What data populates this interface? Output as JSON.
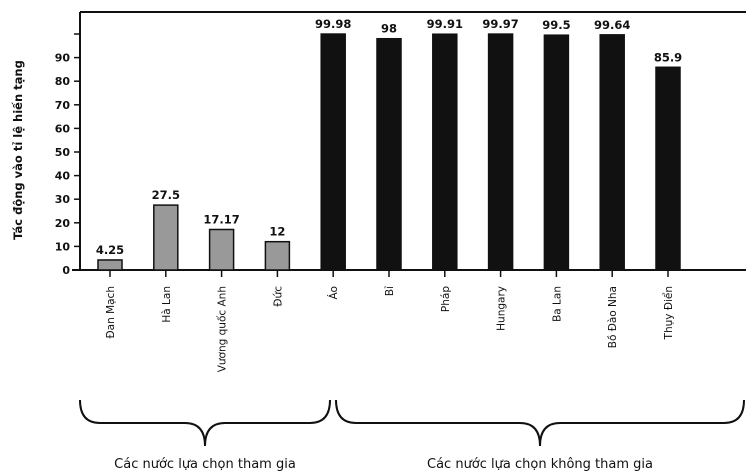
{
  "chart_data": {
    "type": "bar",
    "ylabel": "Tác động vào tỉ lệ hiến tạng",
    "ylim": [
      0,
      100
    ],
    "yticks": [
      0,
      10,
      20,
      30,
      40,
      50,
      60,
      70,
      80,
      90
    ],
    "categories": [
      "Đan Mạch",
      "Hà Lan",
      "Vương quốc Anh",
      "Đức",
      "Áo",
      "Bỉ",
      "Pháp",
      "Hungary",
      "Ba Lan",
      "Bồ Đào Nha",
      "Thụy Điển"
    ],
    "values": [
      4.25,
      27.5,
      17.17,
      12,
      99.98,
      98,
      99.91,
      99.97,
      99.5,
      99.64,
      85.9
    ],
    "value_labels": [
      "4.25",
      "27.5",
      "17.17",
      "12",
      "99.98",
      "98",
      "99.91",
      "99.97",
      "99.5",
      "99.64",
      "85.9"
    ],
    "groups": [
      {
        "label": "Các nước lựa chọn tham gia",
        "start": 0,
        "end": 3,
        "color": "#999999"
      },
      {
        "label": "Các nước lựa chọn không tham gia",
        "start": 4,
        "end": 10,
        "color": "#111111"
      }
    ]
  }
}
